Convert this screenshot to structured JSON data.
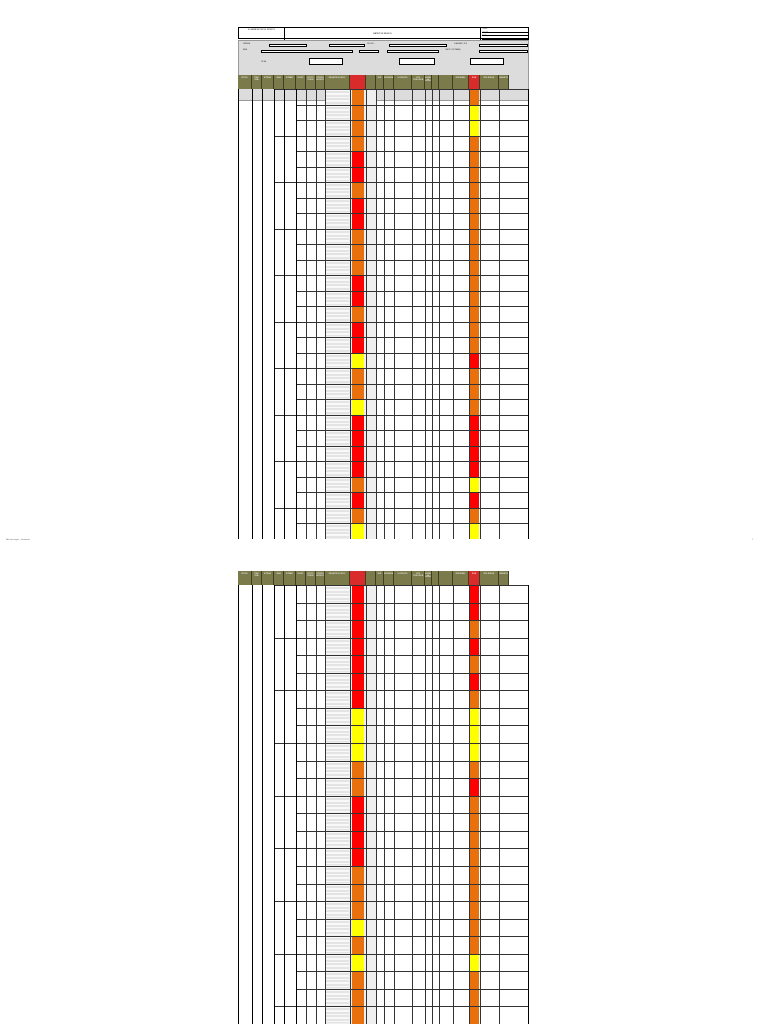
{
  "document": {
    "company": "EL ZAIDÍN PROYECTOS TÉCNICOS",
    "title": "MATRIZ DE RIESGOS",
    "code_lines": [
      "CÓDIGO",
      "VERSIÓN",
      "FECHA",
      "PÁGINA"
    ],
    "footer_left": "Matriz de riesgos — documento",
    "footer_right": "1"
  },
  "info_fields": [
    {
      "label": "EMPRESA",
      "value": ""
    },
    {
      "label": "PROCESO",
      "value": ""
    },
    {
      "label": "ELABORADO POR",
      "value": ""
    },
    {
      "label": "ÁREA",
      "value": ""
    },
    {
      "label": "CENTRO DE TRABAJO",
      "value": ""
    },
    {
      "label": "FECHA",
      "value": ""
    }
  ],
  "column_headers": [
    "PROCESO",
    "ZONA / LUGAR",
    "ACTIVIDAD",
    "TAREA",
    "RUTINARIO",
    "PELIGRO",
    "EFECTOS POSIBLES",
    "CONTROLES EXISTENTES",
    "EVALUACIÓN DEL RIESGO",
    "NIVEL",
    "ACEPTABILIDAD",
    "Nº EXPUESTOS",
    "PEOR CONSECUENCIA",
    "MEDIDAS DE INTERVENCIÓN",
    "RESPONSABLE",
    "FECHA",
    "NIVEL RESIDUAL",
    "OBSERVACIONES"
  ],
  "colors": {
    "header_olive": "#7b7a4a",
    "risk_red": "#ff0000",
    "risk_orange": "#e8710e",
    "risk_yellow": "#ffff00",
    "info_gray": "#dcdcdc"
  },
  "risk_rows_page1": {
    "level": [
      "orange",
      "orange",
      "orange",
      "orange",
      "red",
      "red",
      "orange",
      "red",
      "red",
      "orange",
      "orange",
      "orange",
      "red",
      "red",
      "orange",
      "red",
      "red",
      "yellow",
      "orange",
      "orange",
      "yellow",
      "red",
      "red",
      "red",
      "red",
      "orange",
      "red",
      "orange",
      "yellow"
    ],
    "residual": [
      "orange",
      "yellow",
      "yellow",
      "orange",
      "orange",
      "orange",
      "orange",
      "orange",
      "orange",
      "orange",
      "orange",
      "orange",
      "orange",
      "orange",
      "orange",
      "orange",
      "orange",
      "red",
      "orange",
      "orange",
      "orange",
      "red",
      "red",
      "red",
      "red",
      "yellow",
      "red",
      "orange",
      "yellow"
    ]
  },
  "risk_rows_page2": {
    "level": [
      "red",
      "red",
      "red",
      "red",
      "red",
      "red",
      "red",
      "yellow",
      "yellow",
      "yellow",
      "orange",
      "orange",
      "red",
      "red",
      "red",
      "red",
      "orange",
      "orange",
      "orange",
      "yellow",
      "orange",
      "yellow",
      "orange",
      "orange",
      "orange"
    ],
    "residual": [
      "red",
      "red",
      "orange",
      "red",
      "orange",
      "red",
      "orange",
      "yellow",
      "yellow",
      "yellow",
      "orange",
      "red",
      "orange",
      "orange",
      "orange",
      "orange",
      "orange",
      "orange",
      "orange",
      "orange",
      "orange",
      "yellow",
      "orange",
      "orange",
      "orange"
    ]
  }
}
